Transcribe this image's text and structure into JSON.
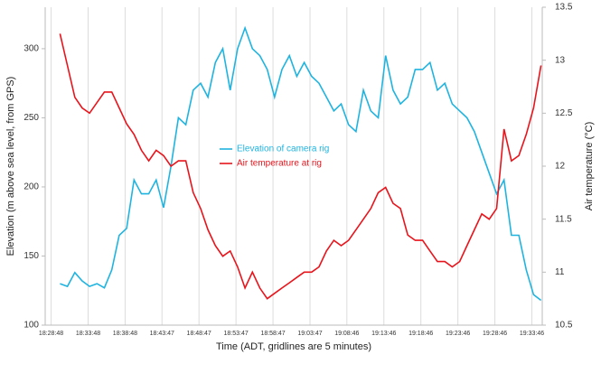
{
  "chart_data": {
    "type": "line",
    "x_label": "Time (ADT, gridlines are 5 minutes)",
    "y_label": "Elevation (m above sea level, from GPS)",
    "y2_label": "Air temperature (°C)",
    "x": [
      "18:30:00",
      "18:31:00",
      "18:32:00",
      "18:33:00",
      "18:34:00",
      "18:35:00",
      "18:36:00",
      "18:37:00",
      "18:38:00",
      "18:39:00",
      "18:40:00",
      "18:41:00",
      "18:42:00",
      "18:43:00",
      "18:44:00",
      "18:45:00",
      "18:46:00",
      "18:47:00",
      "18:48:00",
      "18:49:00",
      "18:50:00",
      "18:51:00",
      "18:52:00",
      "18:53:00",
      "18:54:00",
      "18:55:00",
      "18:56:00",
      "18:57:00",
      "18:58:00",
      "18:59:00",
      "19:00:00",
      "19:01:00",
      "19:02:00",
      "19:03:00",
      "19:04:00",
      "19:05:00",
      "19:06:00",
      "19:07:00",
      "19:08:00",
      "19:09:00",
      "19:10:00",
      "19:11:00",
      "19:12:00",
      "19:13:00",
      "19:14:00",
      "19:15:00",
      "19:16:00",
      "19:17:00",
      "19:18:00",
      "19:19:00",
      "19:20:00",
      "19:21:00",
      "19:22:00",
      "19:23:00",
      "19:24:00",
      "19:25:00",
      "19:26:00",
      "19:27:00",
      "19:28:00",
      "19:29:00",
      "19:30:00",
      "19:31:00",
      "19:32:00",
      "19:33:00",
      "19:34:00",
      "19:35:00"
    ],
    "xlim": [
      "18:28:00",
      "19:35:10"
    ],
    "xticks": [
      "18:28:48",
      "18:33:48",
      "18:38:48",
      "18:43:47",
      "18:48:47",
      "18:53:47",
      "18:58:47",
      "19:03:47",
      "19:08:46",
      "19:13:46",
      "19:18:46",
      "19:23:46",
      "19:28:46",
      "19:33:46"
    ],
    "ylim": [
      100,
      330
    ],
    "yticks": [
      100,
      150,
      200,
      250,
      300
    ],
    "y2lim": [
      10.5,
      13.5
    ],
    "y2ticks": [
      10.5,
      11,
      11.5,
      12,
      12.5,
      13,
      13.5
    ],
    "x_grid": true,
    "legend": "center",
    "series": [
      {
        "name": "Elevation of camera rig",
        "color": "#1fb4e0",
        "values": [
          130,
          128,
          138,
          132,
          128,
          130,
          127,
          140,
          165,
          170,
          205,
          195,
          195,
          205,
          185,
          215,
          250,
          245,
          270,
          275,
          265,
          290,
          300,
          270,
          300,
          315,
          300,
          295,
          285,
          265,
          285,
          295,
          280,
          290,
          280,
          275,
          265,
          255,
          260,
          245,
          240,
          270,
          255,
          250,
          295,
          270,
          260,
          265,
          285,
          285,
          290,
          270,
          275,
          260,
          255,
          250,
          240,
          225,
          210,
          195,
          205,
          165,
          165,
          140,
          122,
          118
        ]
      },
      {
        "name": "Air temperature at rig",
        "color": "#e8141c",
        "axis": "y2",
        "values": [
          13.25,
          12.95,
          12.65,
          12.55,
          12.5,
          12.6,
          12.7,
          12.7,
          12.55,
          12.4,
          12.3,
          12.15,
          12.05,
          12.15,
          12.1,
          12.0,
          12.05,
          12.05,
          11.75,
          11.6,
          11.4,
          11.25,
          11.15,
          11.2,
          11.05,
          10.85,
          11.0,
          10.85,
          10.75,
          10.8,
          10.85,
          10.9,
          10.95,
          11.0,
          11.0,
          11.05,
          11.2,
          11.3,
          11.25,
          11.3,
          11.4,
          11.5,
          11.6,
          11.75,
          11.8,
          11.65,
          11.6,
          11.35,
          11.3,
          11.3,
          11.2,
          11.1,
          11.1,
          11.05,
          11.1,
          11.25,
          11.4,
          11.55,
          11.5,
          11.6,
          12.35,
          12.05,
          12.1,
          12.3,
          12.55,
          12.95
        ]
      }
    ]
  }
}
